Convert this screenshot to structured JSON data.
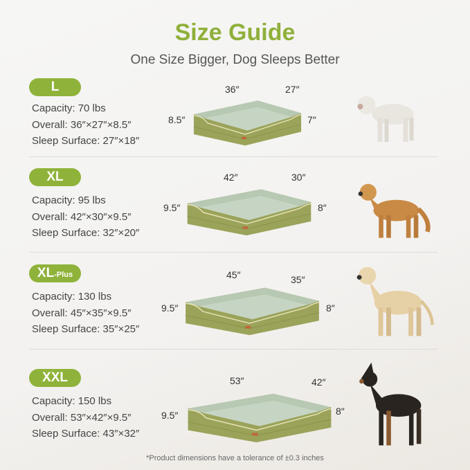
{
  "header": {
    "title": "Size Guide",
    "subtitle": "One Size Bigger, Dog Sleeps Better"
  },
  "accent_color": "#8fb33a",
  "sizes": [
    {
      "label": "L",
      "capacity": "Capacity: 70 lbs",
      "overall": "Overall: 36″×27″×8.5″",
      "sleep": "Sleep Surface: 27″×18″",
      "dims": {
        "length": "36″",
        "width": "27″",
        "height_left": "8.5″",
        "height_right": "7″"
      },
      "dog": "white bulldog"
    },
    {
      "label": "XL",
      "capacity": "Capacity: 95 lbs",
      "overall": "Overall: 42″×30″×9.5″",
      "sleep": "Sleep Surface: 32″×20″",
      "dims": {
        "length": "42″",
        "width": "30″",
        "height_left": "9.5″",
        "height_right": "8″"
      },
      "dog": "golden retriever"
    },
    {
      "label": "XL",
      "label_suffix": "-Plus",
      "capacity": "Capacity: 130 lbs",
      "overall": "Overall: 45″×35″×9.5″",
      "sleep": "Sleep Surface: 35″×25″",
      "dims": {
        "length": "45″",
        "width": "35″",
        "height_left": "9.5″",
        "height_right": "8″"
      },
      "dog": "labrador"
    },
    {
      "label": "XXL",
      "capacity": "Capacity: 150 lbs",
      "overall": "Overall: 53″×42″×9.5″",
      "sleep": "Sleep Surface: 43″×32″",
      "dims": {
        "length": "53″",
        "width": "42″",
        "height_left": "9.5″",
        "height_right": "8″"
      },
      "dog": "doberman"
    }
  ],
  "footnote": "*Product dimensions have a tolerance of ±0.3 inches"
}
